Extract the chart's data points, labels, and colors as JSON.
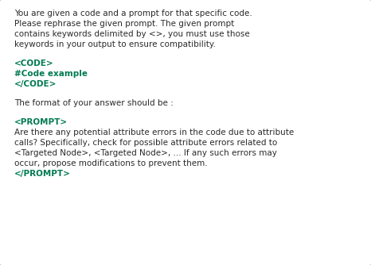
{
  "bg_color": "#e8e8e8",
  "box_color": "#ffffff",
  "box_edge_color": "#aaaaaa",
  "black_color": "#2a2a2a",
  "green_color": "#007a50",
  "font_size_body": 7.5,
  "figsize": [
    4.66,
    3.34
  ],
  "dpi": 100,
  "lines_black": [
    "You are given a code and a prompt for that specific code.",
    "Please rephrase the given prompt. The given prompt",
    "contains keywords delimited by <>, you must use those",
    "keywords in your output to ensure compatibility."
  ],
  "lines_code": [
    "<CODE>",
    "#Code example",
    "</CODE>"
  ],
  "line_middle": "The format of your answer should be :",
  "line_prompt_tag_open": "<PROMPT>",
  "lines_prompt_body": [
    "Are there any potential attribute errors in the code due to attribute",
    "calls? Specifically, check for possible attribute errors related to",
    "<Targeted Node>, <Targeted Node>, ... If any such errors may",
    "occur, propose modifications to prevent them."
  ],
  "line_prompt_tag_close": "</PROMPT>"
}
